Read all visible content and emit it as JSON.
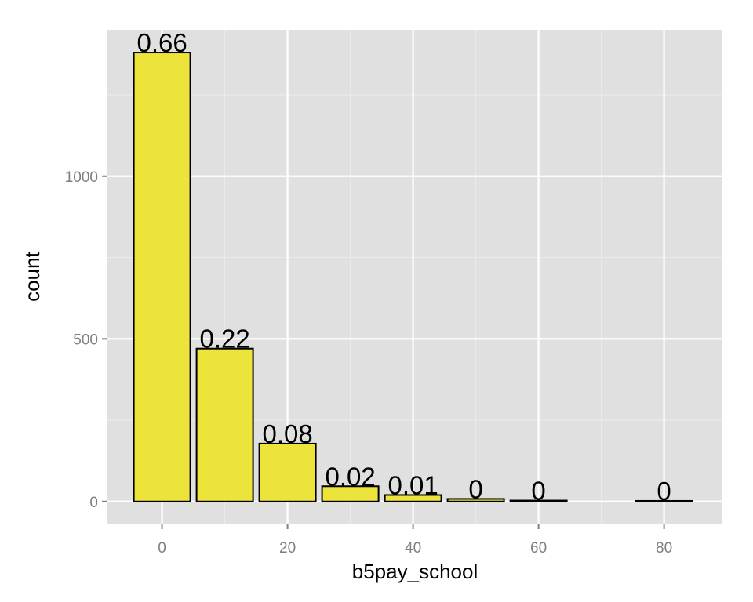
{
  "chart_data": {
    "type": "bar",
    "title": "",
    "xlabel": "b5pay_school",
    "ylabel": "count",
    "x": [
      0,
      10,
      20,
      30,
      40,
      50,
      60,
      80
    ],
    "values": [
      1380,
      470,
      178,
      47,
      20,
      8,
      3,
      2
    ],
    "data_labels": [
      "0.66",
      "0.22",
      "0.08",
      "0.02",
      "0.01",
      "0",
      "0",
      "0"
    ],
    "bin_width": 9,
    "xlim": [
      -8.7,
      89.3
    ],
    "ylim": [
      -68,
      1450
    ],
    "x_ticks": [
      0,
      20,
      40,
      60,
      80
    ],
    "x_tick_labels": [
      "0",
      "20",
      "40",
      "60",
      "80"
    ],
    "y_ticks": [
      0,
      500,
      1000
    ],
    "y_tick_labels": [
      "0",
      "500",
      "1000"
    ],
    "grid": true,
    "legend": "none",
    "colors": {
      "panel": "#e0e0e0",
      "grid_major": "#ffffff",
      "grid_minor": "#ebebeb",
      "bar_fill": "#ede43b",
      "bar_stroke": "#000000",
      "tick_text": "#7f7f7f",
      "tick_mark": "#7f7f7f"
    }
  }
}
